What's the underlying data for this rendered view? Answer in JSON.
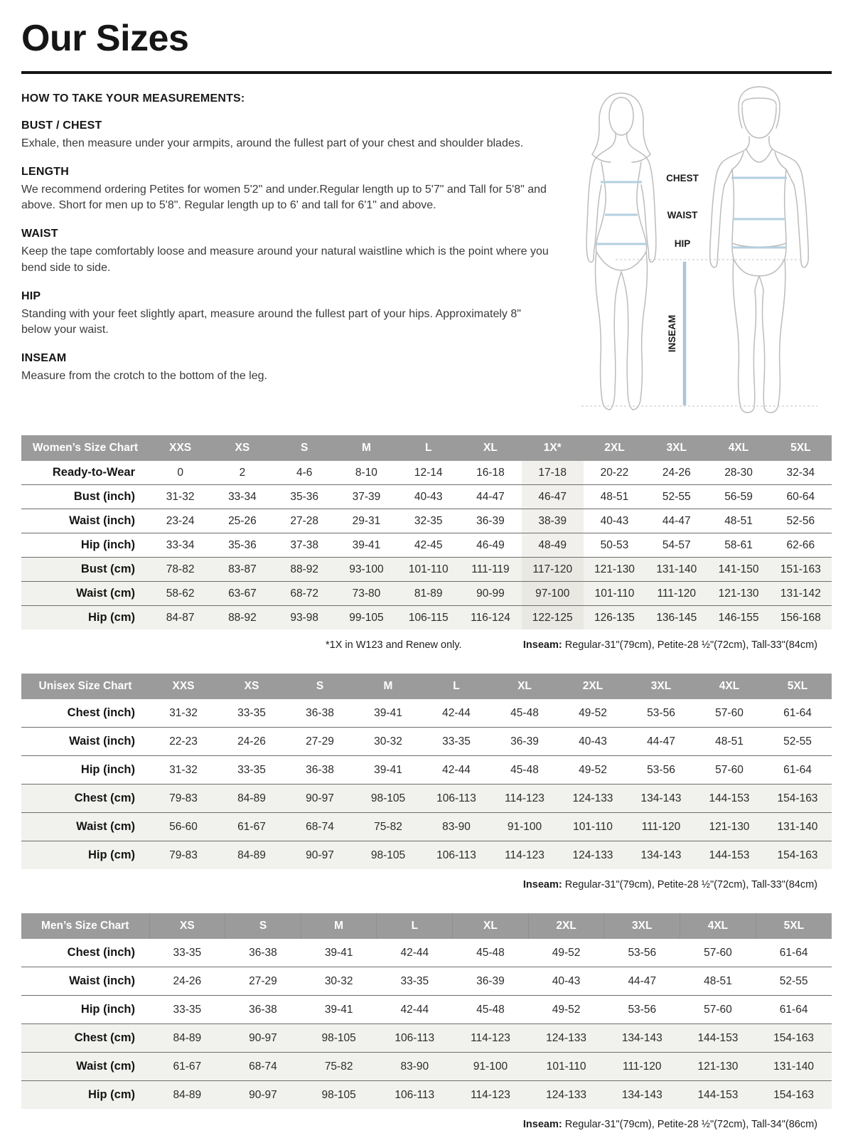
{
  "header": {
    "title": "Our Sizes"
  },
  "instructions": {
    "heading": "HOW TO TAKE YOUR MEASUREMENTS:",
    "sections": [
      {
        "heading": "BUST / CHEST",
        "body": "Exhale, then measure under your armpits, around the fullest part of your chest and shoulder blades."
      },
      {
        "heading": "LENGTH",
        "body": "We recommend ordering Petites for women 5'2\" and under.Regular length up to 5'7\" and Tall for 5'8\" and above. Short for men up to 5'8\". Regular length up to 6' and tall for 6'1\" and above."
      },
      {
        "heading": "WAIST",
        "body": "Keep the tape comfortably loose and measure around your natural waistline which is the point where you bend side to side."
      },
      {
        "heading": "HIP",
        "body": "Standing with your feet slightly apart, measure around the fullest part of your hips. Approximately 8\" below your waist."
      },
      {
        "heading": "INSEAM",
        "body": "Measure from the crotch to the bottom of the leg."
      }
    ]
  },
  "diagram": {
    "chest_label": "CHEST",
    "waist_label": "WAIST",
    "hip_label": "HIP",
    "inseam_label": "INSEAM"
  },
  "colors": {
    "table_header_bg": "#9b9b9b",
    "shaded_row_bg": "#f1f1ee",
    "highlight_col_bg": "#e9e8e3",
    "measure_line_blue": "#b4cfdf"
  },
  "tables": [
    {
      "title": "Women’s Size Chart",
      "columns": [
        "XXS",
        "XS",
        "S",
        "M",
        "L",
        "XL",
        "1X*",
        "2XL",
        "3XL",
        "4XL",
        "5XL"
      ],
      "highlight_index": 6,
      "rows": [
        {
          "label": "Ready-to-Wear",
          "shaded": false,
          "values": [
            "0",
            "2",
            "4-6",
            "8-10",
            "12-14",
            "16-18",
            "17-18",
            "20-22",
            "24-26",
            "28-30",
            "32-34"
          ]
        },
        {
          "label": "Bust (inch)",
          "shaded": false,
          "values": [
            "31-32",
            "33-34",
            "35-36",
            "37-39",
            "40-43",
            "44-47",
            "46-47",
            "48-51",
            "52-55",
            "56-59",
            "60-64"
          ]
        },
        {
          "label": "Waist (inch)",
          "shaded": false,
          "values": [
            "23-24",
            "25-26",
            "27-28",
            "29-31",
            "32-35",
            "36-39",
            "38-39",
            "40-43",
            "44-47",
            "48-51",
            "52-56"
          ]
        },
        {
          "label": "Hip (inch)",
          "shaded": false,
          "values": [
            "33-34",
            "35-36",
            "37-38",
            "39-41",
            "42-45",
            "46-49",
            "48-49",
            "50-53",
            "54-57",
            "58-61",
            "62-66"
          ]
        },
        {
          "label": "Bust (cm)",
          "shaded": true,
          "values": [
            "78-82",
            "83-87",
            "88-92",
            "93-100",
            "101-110",
            "111-119",
            "117-120",
            "121-130",
            "131-140",
            "141-150",
            "151-163"
          ]
        },
        {
          "label": "Waist (cm)",
          "shaded": true,
          "values": [
            "58-62",
            "63-67",
            "68-72",
            "73-80",
            "81-89",
            "90-99",
            "97-100",
            "101-110",
            "111-120",
            "121-130",
            "131-142"
          ]
        },
        {
          "label": "Hip (cm)",
          "shaded": true,
          "values": [
            "84-87",
            "88-92",
            "93-98",
            "99-105",
            "106-115",
            "116-124",
            "122-125",
            "126-135",
            "136-145",
            "146-155",
            "156-168"
          ]
        }
      ],
      "footnote_left": "*1X in W123 and Renew only.",
      "footnote_label": "Inseam:",
      "footnote_text": " Regular-31\"(79cm), Petite-28 ½\"(72cm), Tall-33\"(84cm)"
    },
    {
      "title": "Unisex Size Chart",
      "columns": [
        "XXS",
        "XS",
        "S",
        "M",
        "L",
        "XL",
        "2XL",
        "3XL",
        "4XL",
        "5XL"
      ],
      "highlight_index": -1,
      "rows": [
        {
          "label": "Chest (inch)",
          "shaded": false,
          "values": [
            "31-32",
            "33-35",
            "36-38",
            "39-41",
            "42-44",
            "45-48",
            "49-52",
            "53-56",
            "57-60",
            "61-64"
          ]
        },
        {
          "label": "Waist (inch)",
          "shaded": false,
          "values": [
            "22-23",
            "24-26",
            "27-29",
            "30-32",
            "33-35",
            "36-39",
            "40-43",
            "44-47",
            "48-51",
            "52-55"
          ]
        },
        {
          "label": "Hip (inch)",
          "shaded": false,
          "values": [
            "31-32",
            "33-35",
            "36-38",
            "39-41",
            "42-44",
            "45-48",
            "49-52",
            "53-56",
            "57-60",
            "61-64"
          ]
        },
        {
          "label": "Chest (cm)",
          "shaded": true,
          "values": [
            "79-83",
            "84-89",
            "90-97",
            "98-105",
            "106-113",
            "114-123",
            "124-133",
            "134-143",
            "144-153",
            "154-163"
          ]
        },
        {
          "label": "Waist (cm)",
          "shaded": true,
          "values": [
            "56-60",
            "61-67",
            "68-74",
            "75-82",
            "83-90",
            "91-100",
            "101-110",
            "111-120",
            "121-130",
            "131-140"
          ]
        },
        {
          "label": "Hip (cm)",
          "shaded": true,
          "values": [
            "79-83",
            "84-89",
            "90-97",
            "98-105",
            "106-113",
            "114-123",
            "124-133",
            "134-143",
            "144-153",
            "154-163"
          ]
        }
      ],
      "footnote_label": "Inseam:",
      "footnote_text": " Regular-31\"(79cm), Petite-28 ½\"(72cm), Tall-33\"(84cm)"
    },
    {
      "title": "Men’s Size Chart",
      "columns": [
        "XS",
        "S",
        "M",
        "L",
        "XL",
        "2XL",
        "3XL",
        "4XL",
        "5XL"
      ],
      "highlight_index": -1,
      "rows": [
        {
          "label": "Chest (inch)",
          "shaded": false,
          "values": [
            "33-35",
            "36-38",
            "39-41",
            "42-44",
            "45-48",
            "49-52",
            "53-56",
            "57-60",
            "61-64"
          ]
        },
        {
          "label": "Waist (inch)",
          "shaded": false,
          "values": [
            "24-26",
            "27-29",
            "30-32",
            "33-35",
            "36-39",
            "40-43",
            "44-47",
            "48-51",
            "52-55"
          ]
        },
        {
          "label": "Hip (inch)",
          "shaded": false,
          "values": [
            "33-35",
            "36-38",
            "39-41",
            "42-44",
            "45-48",
            "49-52",
            "53-56",
            "57-60",
            "61-64"
          ]
        },
        {
          "label": "Chest (cm)",
          "shaded": true,
          "values": [
            "84-89",
            "90-97",
            "98-105",
            "106-113",
            "114-123",
            "124-133",
            "134-143",
            "144-153",
            "154-163"
          ]
        },
        {
          "label": "Waist (cm)",
          "shaded": true,
          "values": [
            "61-67",
            "68-74",
            "75-82",
            "83-90",
            "91-100",
            "101-110",
            "111-120",
            "121-130",
            "131-140"
          ]
        },
        {
          "label": "Hip (cm)",
          "shaded": true,
          "values": [
            "84-89",
            "90-97",
            "98-105",
            "106-113",
            "114-123",
            "124-133",
            "134-143",
            "144-153",
            "154-163"
          ]
        }
      ],
      "footnote_label": "Inseam:",
      "footnote_text": " Regular-31\"(79cm), Petite-28 ½\"(72cm), Tall-34\"(86cm)"
    }
  ]
}
